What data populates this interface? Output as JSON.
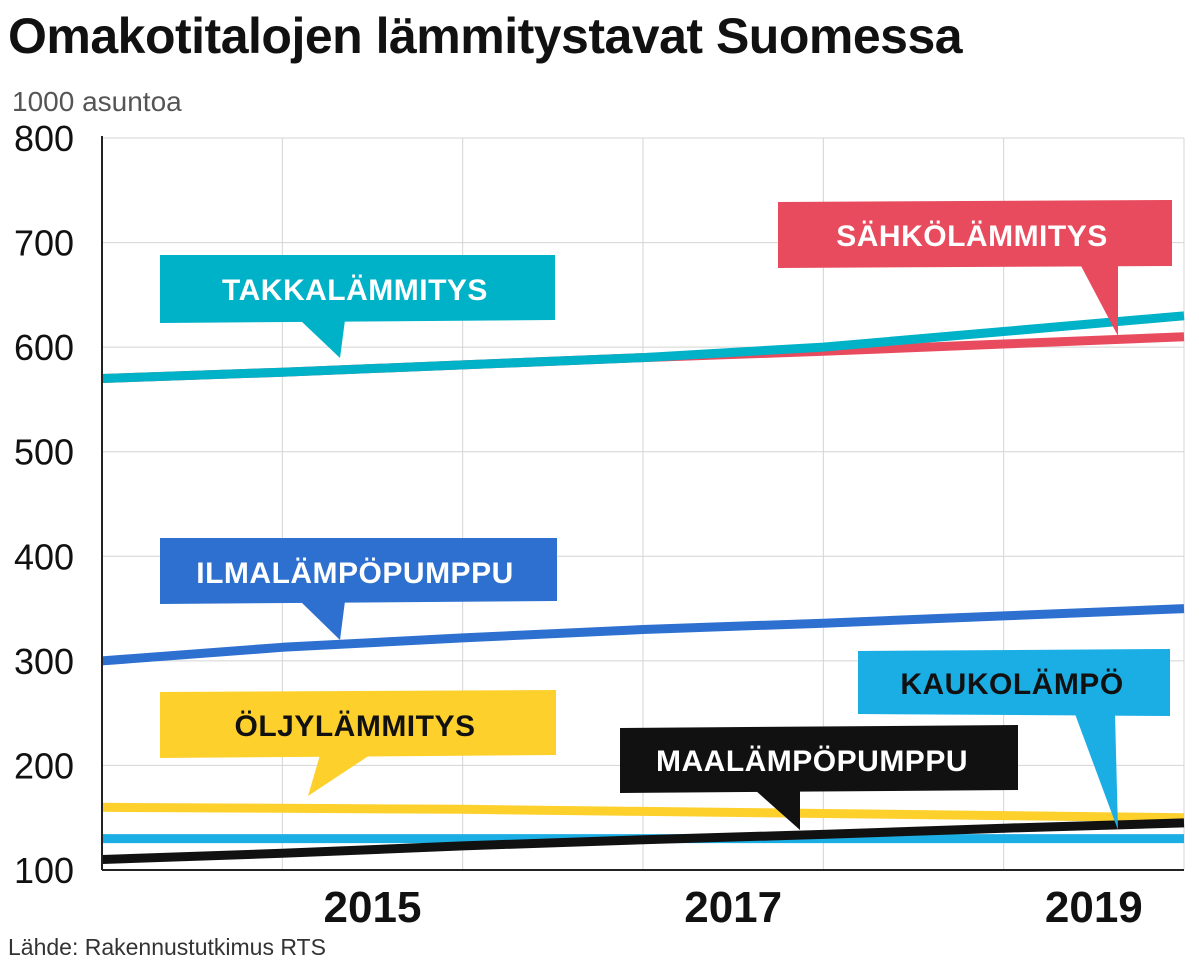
{
  "title": "Omakotitalojen lämmitystavat Suomessa",
  "unit": "1000 asuntoa",
  "source": "Lähde: Rakennustutkimus RTS",
  "chart_data": {
    "type": "line",
    "title": "Omakotitalojen lämmitystavat Suomessa",
    "ylabel": "1000 asuntoa",
    "xlabel": "",
    "xlim": [
      2014,
      2020
    ],
    "ylim": [
      100,
      800
    ],
    "x_ticks": [
      2015,
      2017,
      2019
    ],
    "y_ticks": [
      100,
      200,
      300,
      400,
      500,
      600,
      700,
      800
    ],
    "grid": true,
    "series": [
      {
        "name": "TAKKALÄMMITYS",
        "color": "#00B2C7",
        "text_color": "#ffffff",
        "x": [
          2014,
          2015,
          2016,
          2017,
          2018,
          2019,
          2020
        ],
        "values": [
          570,
          576,
          583,
          590,
          600,
          615,
          630
        ]
      },
      {
        "name": "SÄHKÖLÄMMITYS",
        "color": "#E84B5D",
        "text_color": "#ffffff",
        "x": [
          2014,
          2015,
          2016,
          2017,
          2018,
          2019,
          2020
        ],
        "values": [
          570,
          576,
          583,
          590,
          596,
          603,
          610
        ]
      },
      {
        "name": "ILMALÄMPÖPUMPPU",
        "color": "#2E70CF",
        "text_color": "#ffffff",
        "x": [
          2014,
          2015,
          2016,
          2017,
          2018,
          2019,
          2020
        ],
        "values": [
          300,
          313,
          322,
          330,
          336,
          343,
          350
        ]
      },
      {
        "name": "ÖLJYLÄMMITYS",
        "color": "#FDD02C",
        "text_color": "#111111",
        "x": [
          2014,
          2015,
          2016,
          2017,
          2018,
          2019,
          2020
        ],
        "values": [
          160,
          159,
          158,
          156,
          154,
          152,
          150
        ]
      },
      {
        "name": "KAUKOLÄMPÖ",
        "color": "#1BAEE5",
        "text_color": "#111111",
        "x": [
          2014,
          2015,
          2016,
          2017,
          2018,
          2019,
          2020
        ],
        "values": [
          130,
          130,
          130,
          130,
          130,
          130,
          130
        ]
      },
      {
        "name": "MAALÄMPÖPUMPPU",
        "color": "#111111",
        "text_color": "#ffffff",
        "x": [
          2014,
          2015,
          2016,
          2017,
          2018,
          2019,
          2020
        ],
        "values": [
          110,
          116,
          123,
          129,
          134,
          140,
          145
        ]
      }
    ]
  }
}
